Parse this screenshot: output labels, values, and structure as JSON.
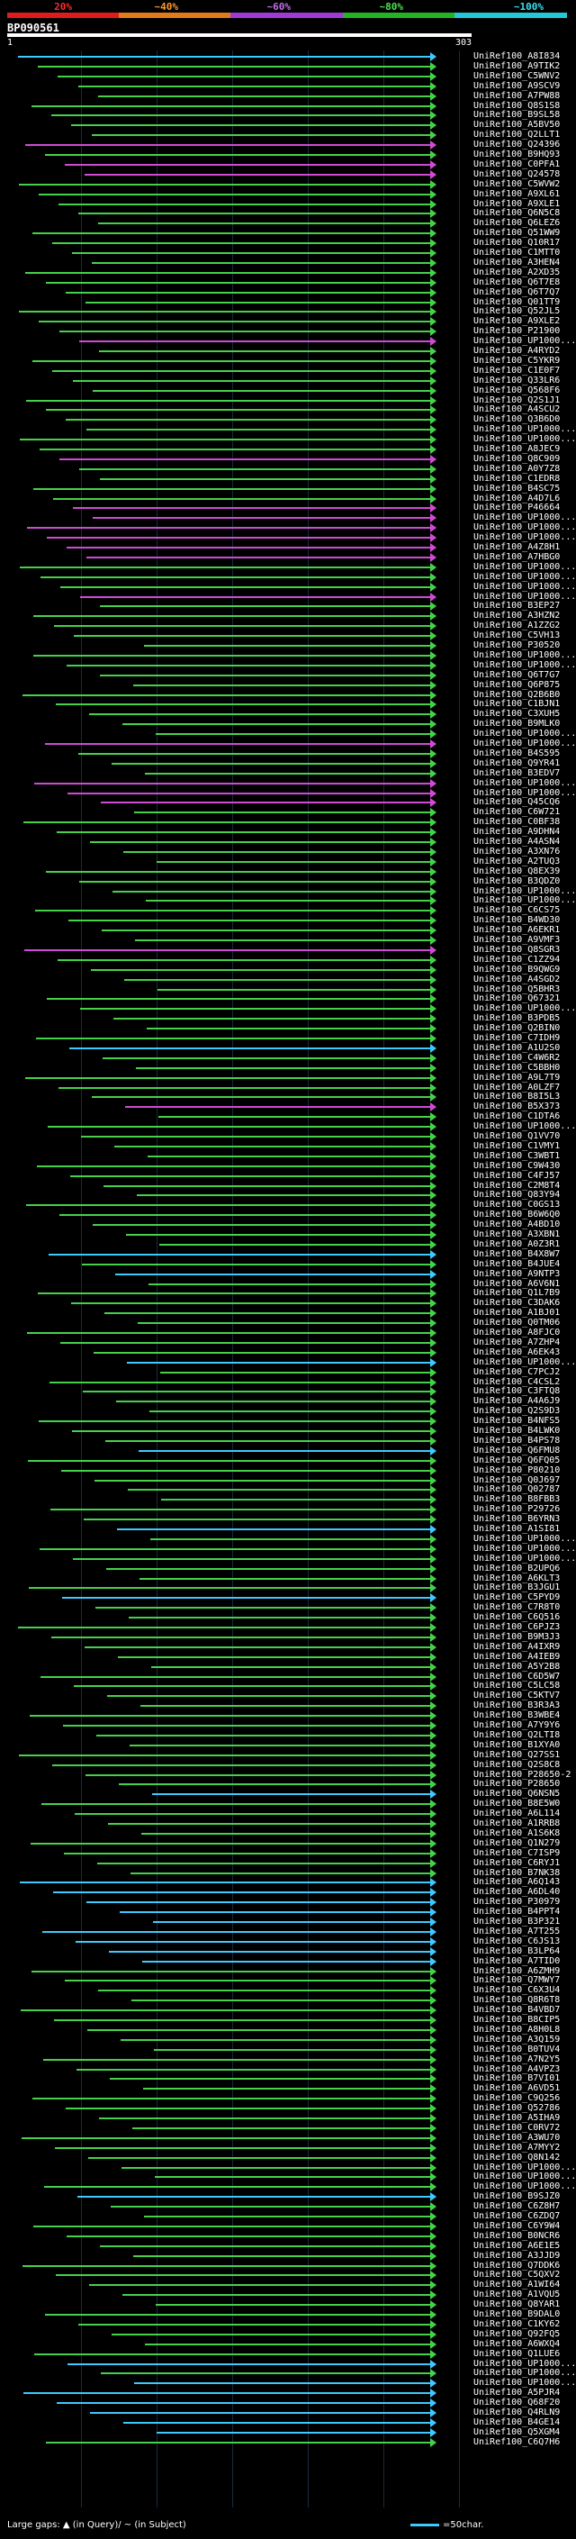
{
  "scale": {
    "labels": [
      "20%",
      "~40%",
      "~60%",
      "~80%",
      "~100%"
    ],
    "colors": [
      "#e01b1b",
      "#e07a1b",
      "#a03ad6",
      "#22b422",
      "#22c8d8"
    ]
  },
  "query": {
    "id": "BP090561",
    "start": "1",
    "end": "303"
  },
  "hits": [
    {
      "label": "UniRef100_A8I834",
      "color": "#3ec9ff"
    },
    {
      "label": "UniRef100_A9TIK2",
      "color": "#45d24a"
    },
    {
      "label": "UniRef100_C5WNV2",
      "color": "#45d24a"
    },
    {
      "label": "UniRef100_A9SCV9",
      "color": "#45d24a"
    },
    {
      "label": "UniRef100_A7PW88",
      "color": "#45d24a"
    },
    {
      "label": "UniRef100_Q8S1S8",
      "color": "#45d24a"
    },
    {
      "label": "UniRef100_B9SL58",
      "color": "#45d24a"
    },
    {
      "label": "UniRef100_A5BV50",
      "color": "#45d24a"
    },
    {
      "label": "UniRef100_Q2LLT1",
      "color": "#45d24a"
    },
    {
      "label": "UniRef100_Q24396",
      "color": "#d04bd4"
    },
    {
      "label": "UniRef100_B9HQ93",
      "color": "#45d24a"
    },
    {
      "label": "UniRef100_C0PFA1",
      "color": "#d04bd4"
    },
    {
      "label": "UniRef100_Q24578",
      "color": "#d04bd4"
    },
    {
      "label": "UniRef100_C5WVW2",
      "color": "#45d24a"
    },
    {
      "label": "UniRef100_A9XL61",
      "color": "#45d24a"
    },
    {
      "label": "UniRef100_A9XLE1",
      "color": "#45d24a"
    },
    {
      "label": "UniRef100_Q6N5C8",
      "color": "#45d24a"
    },
    {
      "label": "UniRef100_Q6LEZ6",
      "color": "#45d24a"
    },
    {
      "label": "UniRef100_Q51WW9",
      "color": "#45d24a"
    },
    {
      "label": "UniRef100_Q10R17",
      "color": "#45d24a"
    },
    {
      "label": "UniRef100_C1MTT0",
      "color": "#45d24a"
    },
    {
      "label": "UniRef100_A3HEN4",
      "color": "#45d24a"
    },
    {
      "label": "UniRef100_A2XD35",
      "color": "#45d24a"
    },
    {
      "label": "UniRef100_Q6T7E8",
      "color": "#45d24a"
    },
    {
      "label": "UniRef100_Q6T7Q7",
      "color": "#45d24a"
    },
    {
      "label": "UniRef100_Q01TT9",
      "color": "#45d24a"
    },
    {
      "label": "UniRef100_Q52JL5",
      "color": "#45d24a"
    },
    {
      "label": "UniRef100_A9XLE2",
      "color": "#45d24a"
    },
    {
      "label": "UniRef100_P21900",
      "color": "#45d24a"
    },
    {
      "label": "UniRef100_UP1000...",
      "color": "#d04bd4"
    },
    {
      "label": "UniRef100_A4RYD2",
      "color": "#45d24a"
    },
    {
      "label": "UniRef100_C5YKR9",
      "color": "#45d24a"
    },
    {
      "label": "UniRef100_C1E0F7",
      "color": "#45d24a"
    },
    {
      "label": "UniRef100_Q33LR6",
      "color": "#45d24a"
    },
    {
      "label": "UniRef100_Q568F6",
      "color": "#45d24a"
    },
    {
      "label": "UniRef100_Q2S1J1",
      "color": "#45d24a"
    },
    {
      "label": "UniRef100_A4SCU2",
      "color": "#45d24a"
    },
    {
      "label": "UniRef100_Q3B6D0",
      "color": "#45d24a"
    },
    {
      "label": "UniRef100_UP1000...",
      "color": "#45d24a"
    },
    {
      "label": "UniRef100_UP1000...",
      "color": "#45d24a"
    },
    {
      "label": "UniRef100_A8JEC9",
      "color": "#45d24a"
    },
    {
      "label": "UniRef100_Q8C909",
      "color": "#d04bd4"
    },
    {
      "label": "UniRef100_A0Y7Z8",
      "color": "#45d24a"
    },
    {
      "label": "UniRef100_C1EDR8",
      "color": "#45d24a"
    },
    {
      "label": "UniRef100_B4SC75",
      "color": "#45d24a"
    },
    {
      "label": "UniRef100_A4D7L6",
      "color": "#45d24a"
    },
    {
      "label": "UniRef100_P46664",
      "color": "#d04bd4"
    },
    {
      "label": "UniRef100_UP1000...",
      "color": "#d04bd4"
    },
    {
      "label": "UniRef100_UP1000...",
      "color": "#d04bd4"
    },
    {
      "label": "UniRef100_UP1000...",
      "color": "#d04bd4"
    },
    {
      "label": "UniRef100_A4Z8H1",
      "color": "#d04bd4"
    },
    {
      "label": "UniRef100_A7HBG0",
      "color": "#d04bd4"
    },
    {
      "label": "UniRef100_UP1000...",
      "color": "#45d24a"
    },
    {
      "label": "UniRef100_UP1000...",
      "color": "#45d24a"
    },
    {
      "label": "UniRef100_UP1000...",
      "color": "#45d24a"
    },
    {
      "label": "UniRef100_UP1000...",
      "color": "#d04bd4"
    },
    {
      "label": "UniRef100_B3EP27",
      "color": "#45d24a"
    },
    {
      "label": "UniRef100_A3HZN2",
      "color": "#45d24a"
    },
    {
      "label": "UniRef100_A1ZZG2",
      "color": "#45d24a"
    },
    {
      "label": "UniRef100_C5VH13",
      "color": "#45d24a"
    },
    {
      "label": "UniRef100_P30520",
      "color": "#45d24a"
    },
    {
      "label": "UniRef100_UP1000...",
      "color": "#45d24a"
    },
    {
      "label": "UniRef100_UP1000...",
      "color": "#45d24a"
    },
    {
      "label": "UniRef100_Q6T7G7",
      "color": "#45d24a"
    },
    {
      "label": "UniRef100_Q6P875",
      "color": "#45d24a"
    },
    {
      "label": "UniRef100_Q2B6B0",
      "color": "#45d24a"
    },
    {
      "label": "UniRef100_C1BJN1",
      "color": "#45d24a"
    },
    {
      "label": "UniRef100_C3XUH5",
      "color": "#45d24a"
    },
    {
      "label": "UniRef100_B9MLK0",
      "color": "#45d24a"
    },
    {
      "label": "UniRef100_UP1000...",
      "color": "#45d24a"
    },
    {
      "label": "UniRef100_UP1000...",
      "color": "#d04bd4"
    },
    {
      "label": "UniRef100_B4S595",
      "color": "#45d24a"
    },
    {
      "label": "UniRef100_Q9YR41",
      "color": "#45d24a"
    },
    {
      "label": "UniRef100_B3EDV7",
      "color": "#45d24a"
    },
    {
      "label": "UniRef100_UP1000...",
      "color": "#d04bd4"
    },
    {
      "label": "UniRef100_UP1000...",
      "color": "#d04bd4"
    },
    {
      "label": "UniRef100_Q45CQ6",
      "color": "#d04bd4"
    },
    {
      "label": "UniRef100_C6W721",
      "color": "#45d24a"
    },
    {
      "label": "UniRef100_C0BF38",
      "color": "#45d24a"
    },
    {
      "label": "UniRef100_A9DHN4",
      "color": "#45d24a"
    },
    {
      "label": "UniRef100_A4ASN4",
      "color": "#45d24a"
    },
    {
      "label": "UniRef100_A3XN76",
      "color": "#45d24a"
    },
    {
      "label": "UniRef100_A2TUQ3",
      "color": "#45d24a"
    },
    {
      "label": "UniRef100_Q8EX39",
      "color": "#45d24a"
    },
    {
      "label": "UniRef100_B3QDZ0",
      "color": "#45d24a"
    },
    {
      "label": "UniRef100_UP1000...",
      "color": "#45d24a"
    },
    {
      "label": "UniRef100_UP1000...",
      "color": "#45d24a"
    },
    {
      "label": "UniRef100_C6CS75",
      "color": "#45d24a"
    },
    {
      "label": "UniRef100_B4WD30",
      "color": "#45d24a"
    },
    {
      "label": "UniRef100_A6EKR1",
      "color": "#45d24a"
    },
    {
      "label": "UniRef100_A9VMF3",
      "color": "#45d24a"
    },
    {
      "label": "UniRef100_Q8SGR3",
      "color": "#d04bd4"
    },
    {
      "label": "UniRef100_C1ZZ94",
      "color": "#45d24a"
    },
    {
      "label": "UniRef100_B9QWG9",
      "color": "#45d24a"
    },
    {
      "label": "UniRef100_A4SGD2",
      "color": "#45d24a"
    },
    {
      "label": "UniRef100_Q5BHR3",
      "color": "#45d24a"
    },
    {
      "label": "UniRef100_Q67321",
      "color": "#45d24a"
    },
    {
      "label": "UniRef100_UP1000...",
      "color": "#45d24a"
    },
    {
      "label": "UniRef100_B3PDB5",
      "color": "#45d24a"
    },
    {
      "label": "UniRef100_Q2BIN0",
      "color": "#45d24a"
    },
    {
      "label": "UniRef100_C7IDH9",
      "color": "#45d24a"
    },
    {
      "label": "UniRef100_A1U2S0",
      "color": "#3ec9ff"
    },
    {
      "label": "UniRef100_C4W6R2",
      "color": "#45d24a"
    },
    {
      "label": "UniRef100_C5BBH0",
      "color": "#45d24a"
    },
    {
      "label": "UniRef100_A9L7T9",
      "color": "#45d24a"
    },
    {
      "label": "UniRef100_A0LZF7",
      "color": "#45d24a"
    },
    {
      "label": "UniRef100_B8I5L3",
      "color": "#45d24a"
    },
    {
      "label": "UniRef100_B5X373",
      "color": "#d04bd4"
    },
    {
      "label": "UniRef100_C1DTA6",
      "color": "#45d24a"
    },
    {
      "label": "UniRef100_UP1000...",
      "color": "#45d24a"
    },
    {
      "label": "UniRef100_Q1VV70",
      "color": "#45d24a"
    },
    {
      "label": "UniRef100_C1VMY1",
      "color": "#45d24a"
    },
    {
      "label": "UniRef100_C3WBT1",
      "color": "#45d24a"
    },
    {
      "label": "UniRef100_C9W430",
      "color": "#45d24a"
    },
    {
      "label": "UniRef100_C4FJ57",
      "color": "#45d24a"
    },
    {
      "label": "UniRef100_C2M8T4",
      "color": "#45d24a"
    },
    {
      "label": "UniRef100_Q83Y94",
      "color": "#45d24a"
    },
    {
      "label": "UniRef100_C0GS13",
      "color": "#45d24a"
    },
    {
      "label": "UniRef100_B6W6Q0",
      "color": "#45d24a"
    },
    {
      "label": "UniRef100_A4BD10",
      "color": "#45d24a"
    },
    {
      "label": "UniRef100_A3XBN1",
      "color": "#45d24a"
    },
    {
      "label": "UniRef100_A0Z3R1",
      "color": "#45d24a"
    },
    {
      "label": "UniRef100_B4X8W7",
      "color": "#3ec9ff"
    },
    {
      "label": "UniRef100_B4JUE4",
      "color": "#45d24a"
    },
    {
      "label": "UniRef100_A9NTP3",
      "color": "#3ec9ff"
    },
    {
      "label": "UniRef100_A6V6N1",
      "color": "#45d24a"
    },
    {
      "label": "UniRef100_Q1L7B9",
      "color": "#45d24a"
    },
    {
      "label": "UniRef100_C3DAK6",
      "color": "#45d24a"
    },
    {
      "label": "UniRef100_A1BJ01",
      "color": "#45d24a"
    },
    {
      "label": "UniRef100_Q0TM06",
      "color": "#45d24a"
    },
    {
      "label": "UniRef100_A8FJC0",
      "color": "#45d24a"
    },
    {
      "label": "UniRef100_A7ZHP4",
      "color": "#45d24a"
    },
    {
      "label": "UniRef100_A6EK43",
      "color": "#45d24a"
    },
    {
      "label": "UniRef100_UP1000...",
      "color": "#3ec9ff"
    },
    {
      "label": "UniRef100_C7PCJ2",
      "color": "#45d24a"
    },
    {
      "label": "UniRef100_C4CSL2",
      "color": "#45d24a"
    },
    {
      "label": "UniRef100_C3FTQ8",
      "color": "#45d24a"
    },
    {
      "label": "UniRef100_A4A6J9",
      "color": "#45d24a"
    },
    {
      "label": "UniRef100_Q2S9D3",
      "color": "#45d24a"
    },
    {
      "label": "UniRef100_B4NFS5",
      "color": "#45d24a"
    },
    {
      "label": "UniRef100_B4LWK0",
      "color": "#45d24a"
    },
    {
      "label": "UniRef100_B4PS78",
      "color": "#45d24a"
    },
    {
      "label": "UniRef100_Q6FMU8",
      "color": "#3ec9ff"
    },
    {
      "label": "UniRef100_Q6FQ05",
      "color": "#45d24a"
    },
    {
      "label": "UniRef100_P80210",
      "color": "#45d24a"
    },
    {
      "label": "UniRef100_Q0J697",
      "color": "#45d24a"
    },
    {
      "label": "UniRef100_Q02787",
      "color": "#45d24a"
    },
    {
      "label": "UniRef100_B8FBB3",
      "color": "#45d24a"
    },
    {
      "label": "UniRef100_P29726",
      "color": "#45d24a"
    },
    {
      "label": "UniRef100_B6YRN3",
      "color": "#45d24a"
    },
    {
      "label": "UniRef100_A1SI81",
      "color": "#3ec9ff"
    },
    {
      "label": "UniRef100_UP1000...",
      "color": "#45d24a"
    },
    {
      "label": "UniRef100_UP1000...",
      "color": "#45d24a"
    },
    {
      "label": "UniRef100_UP1000...",
      "color": "#45d24a"
    },
    {
      "label": "UniRef100_B2UPQ6",
      "color": "#45d24a"
    },
    {
      "label": "UniRef100_A6KLT3",
      "color": "#45d24a"
    },
    {
      "label": "UniRef100_B3JGU1",
      "color": "#45d24a"
    },
    {
      "label": "UniRef100_C5PYD9",
      "color": "#3ec9ff"
    },
    {
      "label": "UniRef100_C7R8T0",
      "color": "#45d24a"
    },
    {
      "label": "UniRef100_C6Q516",
      "color": "#45d24a"
    },
    {
      "label": "UniRef100_C6PJZ3",
      "color": "#45d24a"
    },
    {
      "label": "UniRef100_B9M3J3",
      "color": "#45d24a"
    },
    {
      "label": "UniRef100_A4IXR9",
      "color": "#45d24a"
    },
    {
      "label": "UniRef100_A4IEB9",
      "color": "#45d24a"
    },
    {
      "label": "UniRef100_A5Y2B8",
      "color": "#45d24a"
    },
    {
      "label": "UniRef100_C6D5W7",
      "color": "#45d24a"
    },
    {
      "label": "UniRef100_C5LC58",
      "color": "#45d24a"
    },
    {
      "label": "UniRef100_C5KTV7",
      "color": "#45d24a"
    },
    {
      "label": "UniRef100_B3R3A3",
      "color": "#45d24a"
    },
    {
      "label": "UniRef100_B3WBE4",
      "color": "#45d24a"
    },
    {
      "label": "UniRef100_A7Y9Y6",
      "color": "#45d24a"
    },
    {
      "label": "UniRef100_Q2LTI8",
      "color": "#45d24a"
    },
    {
      "label": "UniRef100_B1XYA0",
      "color": "#45d24a"
    },
    {
      "label": "UniRef100_Q27SS1",
      "color": "#45d24a"
    },
    {
      "label": "UniRef100_Q2S8C8",
      "color": "#45d24a"
    },
    {
      "label": "UniRef100_P28650-2",
      "color": "#45d24a"
    },
    {
      "label": "UniRef100_P28650",
      "color": "#45d24a"
    },
    {
      "label": "UniRef100_Q6NSN5",
      "color": "#3ec9ff"
    },
    {
      "label": "UniRef100_B8E5W0",
      "color": "#45d24a"
    },
    {
      "label": "UniRef100_A6L114",
      "color": "#45d24a"
    },
    {
      "label": "UniRef100_A1RRB8",
      "color": "#45d24a"
    },
    {
      "label": "UniRef100_A1S6K8",
      "color": "#45d24a"
    },
    {
      "label": "UniRef100_Q1N279",
      "color": "#45d24a"
    },
    {
      "label": "UniRef100_C7ISP9",
      "color": "#45d24a"
    },
    {
      "label": "UniRef100_C6RYJ1",
      "color": "#45d24a"
    },
    {
      "label": "UniRef100_B7NK38",
      "color": "#45d24a"
    },
    {
      "label": "UniRef100_A6Q143",
      "color": "#3ec9ff"
    },
    {
      "label": "UniRef100_A6DL40",
      "color": "#3ec9ff"
    },
    {
      "label": "UniRef100_P30979",
      "color": "#3ec9ff"
    },
    {
      "label": "UniRef100_B4PPT4",
      "color": "#3ec9ff"
    },
    {
      "label": "UniRef100_B3P321",
      "color": "#3ec9ff"
    },
    {
      "label": "UniRef100_A7T255",
      "color": "#3ec9ff"
    },
    {
      "label": "UniRef100_C6JS13",
      "color": "#3ec9ff"
    },
    {
      "label": "UniRef100_B3LP64",
      "color": "#3ec9ff"
    },
    {
      "label": "UniRef100_A7TID0",
      "color": "#3ec9ff"
    },
    {
      "label": "UniRef100_A6ZMH9",
      "color": "#45d24a"
    },
    {
      "label": "UniRef100_Q7MWY7",
      "color": "#45d24a"
    },
    {
      "label": "UniRef100_C6X3U4",
      "color": "#45d24a"
    },
    {
      "label": "UniRef100_Q8R6T8",
      "color": "#45d24a"
    },
    {
      "label": "UniRef100_B4VBD7",
      "color": "#45d24a"
    },
    {
      "label": "UniRef100_B8CIP5",
      "color": "#45d24a"
    },
    {
      "label": "UniRef100_A8H0L8",
      "color": "#45d24a"
    },
    {
      "label": "UniRef100_A3Q159",
      "color": "#45d24a"
    },
    {
      "label": "UniRef100_B0TUV4",
      "color": "#45d24a"
    },
    {
      "label": "UniRef100_A7N2Y5",
      "color": "#45d24a"
    },
    {
      "label": "UniRef100_A4VPZ3",
      "color": "#45d24a"
    },
    {
      "label": "UniRef100_B7VI01",
      "color": "#45d24a"
    },
    {
      "label": "UniRef100_A6VD51",
      "color": "#45d24a"
    },
    {
      "label": "UniRef100_C9Q256",
      "color": "#45d24a"
    },
    {
      "label": "UniRef100_Q52786",
      "color": "#45d24a"
    },
    {
      "label": "UniRef100_A5IHA9",
      "color": "#45d24a"
    },
    {
      "label": "UniRef100_C0RV72",
      "color": "#45d24a"
    },
    {
      "label": "UniRef100_A3WU70",
      "color": "#45d24a"
    },
    {
      "label": "UniRef100_A7MYY2",
      "color": "#45d24a"
    },
    {
      "label": "UniRef100_Q8N142",
      "color": "#45d24a"
    },
    {
      "label": "UniRef100_UP1000...",
      "color": "#45d24a"
    },
    {
      "label": "UniRef100_UP1000...",
      "color": "#45d24a"
    },
    {
      "label": "UniRef100_UP1000...",
      "color": "#45d24a"
    },
    {
      "label": "UniRef100_B9SJZ0",
      "color": "#3ec9ff"
    },
    {
      "label": "UniRef100_C6Z8H7",
      "color": "#45d24a"
    },
    {
      "label": "UniRef100_C6ZDQ7",
      "color": "#45d24a"
    },
    {
      "label": "UniRef100_C6Y9W4",
      "color": "#45d24a"
    },
    {
      "label": "UniRef100_B0NCR6",
      "color": "#45d24a"
    },
    {
      "label": "UniRef100_A6E1E5",
      "color": "#45d24a"
    },
    {
      "label": "UniRef100_A3JJD9",
      "color": "#45d24a"
    },
    {
      "label": "UniRef100_Q7DDK6",
      "color": "#45d24a"
    },
    {
      "label": "UniRef100_C5QXV2",
      "color": "#45d24a"
    },
    {
      "label": "UniRef100_A1WI64",
      "color": "#45d24a"
    },
    {
      "label": "UniRef100_A1VQU5",
      "color": "#45d24a"
    },
    {
      "label": "UniRef100_Q8YAR1",
      "color": "#45d24a"
    },
    {
      "label": "UniRef100_B9DAL0",
      "color": "#45d24a"
    },
    {
      "label": "UniRef100_C1KY62",
      "color": "#45d24a"
    },
    {
      "label": "UniRef100_Q92FQ5",
      "color": "#45d24a"
    },
    {
      "label": "UniRef100_A6WXQ4",
      "color": "#45d24a"
    },
    {
      "label": "UniRef100_Q1LUE6",
      "color": "#45d24a"
    },
    {
      "label": "UniRef100_UP1000...",
      "color": "#3ec9ff"
    },
    {
      "label": "UniRef100_UP1000...",
      "color": "#45d24a"
    },
    {
      "label": "UniRef100_UP1000...",
      "color": "#3ec9ff"
    },
    {
      "label": "UniRef100_A5PJR4",
      "color": "#3ec9ff"
    },
    {
      "label": "UniRef100_Q68F20",
      "color": "#3ec9ff"
    },
    {
      "label": "UniRef100_Q4RLN9",
      "color": "#3ec9ff"
    },
    {
      "label": "UniRef100_B4GE14",
      "color": "#3ec9ff"
    },
    {
      "label": "UniRef100_Q5XGM4",
      "color": "#3ec9ff"
    },
    {
      "label": "UniRef100_C6Q7H6",
      "color": "#45d24a"
    }
  ],
  "footer": {
    "gaps_text": "Large gaps: ▲ (in Query)/ ~ (in Subject)",
    "scale_text": "=50char."
  }
}
